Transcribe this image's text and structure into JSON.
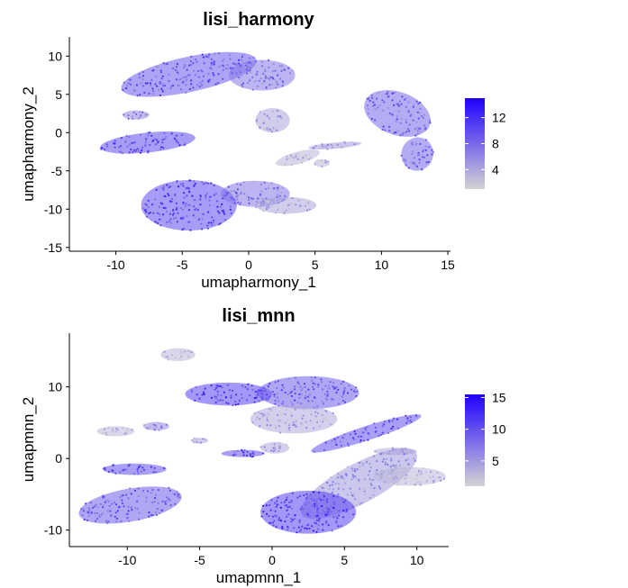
{
  "chart_data": [
    {
      "type": "scatter",
      "title": "lisi_harmony",
      "xlabel": "umapharmony_1",
      "ylabel": "umapharmony_2",
      "xlim": [
        -13.5,
        15.2
      ],
      "ylim": [
        -15.5,
        12.5
      ],
      "xticks": [
        -10,
        -5,
        0,
        5,
        10,
        15
      ],
      "yticks": [
        10,
        5,
        0,
        -5,
        -10,
        -15
      ],
      "grid": false,
      "color_scale": {
        "low": "#d3d3d3",
        "high": "#1f00ff",
        "min": 1,
        "max": 15,
        "ticks": [
          12,
          8,
          4
        ],
        "placement": "right"
      },
      "clusters": [
        {
          "cx": -4.5,
          "cy": 7.6,
          "rx": 5.2,
          "ry": 2.3,
          "rot": -12,
          "value": 9
        },
        {
          "cx": 1.0,
          "cy": 7.5,
          "rx": 2.5,
          "ry": 2.0,
          "rot": 0,
          "value": 7
        },
        {
          "cx": 11.2,
          "cy": 2.5,
          "rx": 2.6,
          "ry": 2.8,
          "rot": 20,
          "value": 8
        },
        {
          "cx": 12.7,
          "cy": -2.8,
          "rx": 1.2,
          "ry": 2.2,
          "rot": 20,
          "value": 8
        },
        {
          "cx": -7.6,
          "cy": -1.3,
          "rx": 3.6,
          "ry": 1.3,
          "rot": -6,
          "value": 10
        },
        {
          "cx": -8.5,
          "cy": 2.3,
          "rx": 1.0,
          "ry": 0.6,
          "rot": 0,
          "value": 6
        },
        {
          "cx": -4.5,
          "cy": -9.5,
          "rx": 3.6,
          "ry": 3.3,
          "rot": 0,
          "value": 10
        },
        {
          "cx": 0.5,
          "cy": -8.0,
          "rx": 2.6,
          "ry": 1.7,
          "rot": 0,
          "value": 7
        },
        {
          "cx": 2.8,
          "cy": -9.5,
          "rx": 2.3,
          "ry": 1.1,
          "rot": 0,
          "value": 4
        },
        {
          "cx": 1.8,
          "cy": 1.6,
          "rx": 1.3,
          "ry": 1.6,
          "rot": 0,
          "value": 4
        },
        {
          "cx": 3.7,
          "cy": -3.3,
          "rx": 1.7,
          "ry": 0.8,
          "rot": -15,
          "value": 3
        },
        {
          "cx": 6.5,
          "cy": -1.7,
          "rx": 2.0,
          "ry": 0.4,
          "rot": -5,
          "value": 5
        },
        {
          "cx": 5.5,
          "cy": -4.0,
          "rx": 0.6,
          "ry": 0.5,
          "rot": 0,
          "value": 3
        }
      ]
    },
    {
      "type": "scatter",
      "title": "lisi_mnn",
      "xlabel": "umapmnn_1",
      "ylabel": "umapmnn_2",
      "xlim": [
        -14.0,
        12.2
      ],
      "ylim": [
        -12.3,
        17.5
      ],
      "xticks": [
        -10,
        -5,
        0,
        5,
        10
      ],
      "yticks": [
        10,
        0,
        -10
      ],
      "grid": false,
      "color_scale": {
        "low": "#d3d3d3",
        "high": "#1f00ff",
        "min": 1,
        "max": 15.5,
        "ticks": [
          15,
          10,
          5
        ],
        "placement": "right"
      },
      "clusters": [
        {
          "cx": -6.5,
          "cy": 14.5,
          "rx": 1.2,
          "ry": 0.9,
          "rot": 0,
          "value": 3
        },
        {
          "cx": -3.0,
          "cy": 9.0,
          "rx": 3.0,
          "ry": 1.6,
          "rot": 0,
          "value": 11
        },
        {
          "cx": 2.5,
          "cy": 9.2,
          "rx": 3.5,
          "ry": 2.3,
          "rot": 0,
          "value": 9
        },
        {
          "cx": 1.5,
          "cy": 5.5,
          "rx": 3.0,
          "ry": 2.0,
          "rot": 0,
          "value": 4
        },
        {
          "cx": 6.5,
          "cy": 3.5,
          "rx": 4.0,
          "ry": 1.0,
          "rot": -18,
          "value": 10
        },
        {
          "cx": 8.5,
          "cy": 1.0,
          "rx": 1.5,
          "ry": 0.5,
          "rot": 0,
          "value": 4
        },
        {
          "cx": 6.0,
          "cy": -3.5,
          "rx": 4.5,
          "ry": 2.8,
          "rot": -28,
          "value": 5
        },
        {
          "cx": 9.5,
          "cy": -2.5,
          "rx": 2.5,
          "ry": 1.3,
          "rot": 0,
          "value": 3
        },
        {
          "cx": 2.5,
          "cy": -7.5,
          "rx": 3.3,
          "ry": 3.0,
          "rot": 0,
          "value": 11
        },
        {
          "cx": -9.8,
          "cy": -6.5,
          "rx": 3.6,
          "ry": 2.3,
          "rot": -10,
          "value": 9
        },
        {
          "cx": -9.5,
          "cy": -1.5,
          "rx": 2.2,
          "ry": 0.8,
          "rot": 0,
          "value": 10
        },
        {
          "cx": -10.8,
          "cy": 3.8,
          "rx": 1.3,
          "ry": 0.7,
          "rot": 0,
          "value": 3
        },
        {
          "cx": -8.0,
          "cy": 4.5,
          "rx": 0.9,
          "ry": 0.6,
          "rot": 0,
          "value": 6
        },
        {
          "cx": -2.0,
          "cy": 0.7,
          "rx": 1.5,
          "ry": 0.5,
          "rot": 0,
          "value": 10
        },
        {
          "cx": -5.0,
          "cy": 2.5,
          "rx": 0.6,
          "ry": 0.4,
          "rot": 0,
          "value": 4
        },
        {
          "cx": 0.2,
          "cy": 1.5,
          "rx": 1.0,
          "ry": 0.8,
          "rot": 0,
          "value": 4
        }
      ]
    }
  ]
}
